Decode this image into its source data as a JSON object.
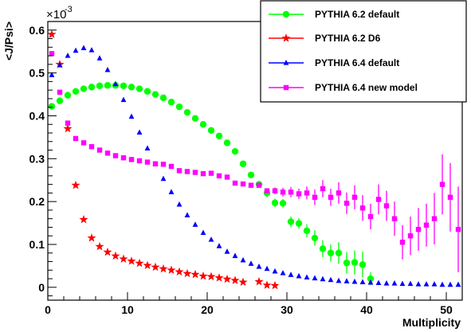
{
  "chart_data": {
    "type": "scatter",
    "title": "",
    "xlabel": "Multiplicity",
    "ylabel": "<J/Psi>",
    "y_multiplier_label": "×10",
    "y_multiplier_exp": "-3",
    "xlim": [
      0,
      52
    ],
    "ylim": [
      -0.03,
      0.62
    ],
    "x_ticks": [
      0,
      10,
      20,
      30,
      40,
      50
    ],
    "y_ticks": [
      0,
      0.1,
      0.2,
      0.3,
      0.4,
      0.5,
      0.6
    ],
    "x_tick_labels": [
      "0",
      "10",
      "20",
      "30",
      "40",
      "50"
    ],
    "y_tick_labels": [
      "0",
      "0.1",
      "0.2",
      "0.3",
      "0.4",
      "0.5",
      "0.6"
    ],
    "grid": false,
    "legend_position": "top-right",
    "series": [
      {
        "name": "PYTHIA 6.2 default",
        "color": "#00ff00",
        "marker": "circle",
        "x": [
          0.5,
          1.5,
          2.5,
          3.5,
          4.5,
          5.5,
          6.5,
          7.5,
          8.5,
          9.5,
          10.5,
          11.5,
          12.5,
          13.5,
          14.5,
          15.5,
          16.5,
          17.5,
          18.5,
          19.5,
          20.5,
          21.5,
          22.5,
          23.5,
          24.5,
          25.5,
          26.5,
          27.5,
          28.5,
          29.5,
          30.5,
          31.5,
          32.5,
          33.5,
          34.5,
          35.5,
          36.5,
          37.5,
          38.5,
          39.5,
          40.5
        ],
        "y": [
          0.422,
          0.435,
          0.448,
          0.457,
          0.463,
          0.467,
          0.47,
          0.471,
          0.471,
          0.47,
          0.467,
          0.463,
          0.457,
          0.45,
          0.442,
          0.432,
          0.421,
          0.408,
          0.394,
          0.38,
          0.366,
          0.353,
          0.337,
          0.317,
          0.288,
          0.262,
          0.24,
          0.22,
          0.197,
          0.196,
          0.153,
          0.149,
          0.132,
          0.115,
          0.09,
          0.08,
          0.08,
          0.057,
          0.058,
          0.053,
          0.02
        ],
        "err": [
          0,
          0,
          0,
          0,
          0,
          0,
          0,
          0,
          0,
          0,
          0,
          0,
          0,
          0,
          0,
          0,
          0,
          0,
          0,
          0,
          0,
          0,
          0,
          0,
          0,
          0,
          0,
          0.01,
          0.01,
          0.01,
          0.012,
          0.012,
          0.015,
          0.018,
          0.02,
          0.02,
          0.025,
          0.025,
          0.028,
          0.03,
          0.015
        ]
      },
      {
        "name": "PYTHIA 6.2 D6",
        "color": "#ff0000",
        "marker": "star",
        "x": [
          0.5,
          1.5,
          2.5,
          3.5,
          4.5,
          5.5,
          6.5,
          7.5,
          8.5,
          9.5,
          10.5,
          11.5,
          12.5,
          13.5,
          14.5,
          15.5,
          16.5,
          17.5,
          18.5,
          19.5,
          20.5,
          21.5,
          22.5,
          23.5,
          24.5,
          26.5,
          27.5,
          28.5
        ],
        "y": [
          0.59,
          0.52,
          0.37,
          0.238,
          0.158,
          0.115,
          0.095,
          0.082,
          0.073,
          0.066,
          0.061,
          0.056,
          0.051,
          0.047,
          0.043,
          0.04,
          0.036,
          0.032,
          0.03,
          0.026,
          0.025,
          0.022,
          0.019,
          0.016,
          0.012,
          0.013,
          0.005,
          0.004
        ]
      },
      {
        "name": "PYTHIA 6.4 default",
        "color": "#0000ff",
        "marker": "triangle",
        "x": [
          0.5,
          1.5,
          2.5,
          3.5,
          4.5,
          5.5,
          6.5,
          7.5,
          8.5,
          9.5,
          10.5,
          11.5,
          12.5,
          13.5,
          14.5,
          15.5,
          16.5,
          17.5,
          18.5,
          19.5,
          20.5,
          21.5,
          22.5,
          23.5,
          24.5,
          25.5,
          26.5,
          27.5,
          28.5,
          29.5,
          30.5,
          31.5,
          32.5,
          33.5,
          34.5,
          35.5,
          36.5,
          37.5,
          38.5,
          39.5,
          40.5,
          41.5,
          42.5,
          43.5,
          44.5,
          45.5,
          46.5,
          47.5,
          48.5,
          49.5,
          50.5,
          51.5
        ],
        "y": [
          0.495,
          0.518,
          0.54,
          0.552,
          0.558,
          0.553,
          0.534,
          0.507,
          0.474,
          0.437,
          0.398,
          0.361,
          0.324,
          0.287,
          0.253,
          0.222,
          0.193,
          0.168,
          0.146,
          0.127,
          0.111,
          0.096,
          0.083,
          0.073,
          0.063,
          0.055,
          0.048,
          0.043,
          0.037,
          0.033,
          0.029,
          0.026,
          0.023,
          0.021,
          0.019,
          0.017,
          0.015,
          0.014,
          0.013,
          0.012,
          0.011,
          0.01,
          0.009,
          0.009,
          0.008,
          0.008,
          0.007,
          0.007,
          0.007,
          0.006,
          0.006,
          0.006
        ]
      },
      {
        "name": "PYTHIA 6.4 new model",
        "color": "#ff00ff",
        "marker": "square",
        "x": [
          0.5,
          1.5,
          2.5,
          3.5,
          4.5,
          5.5,
          6.5,
          7.5,
          8.5,
          9.5,
          10.5,
          11.5,
          12.5,
          13.5,
          14.5,
          15.5,
          16.5,
          17.5,
          18.5,
          19.5,
          20.5,
          21.5,
          22.5,
          23.5,
          24.5,
          25.5,
          26.5,
          27.5,
          28.5,
          29.5,
          30.5,
          31.5,
          32.5,
          33.5,
          34.5,
          35.5,
          36.5,
          37.5,
          38.5,
          39.5,
          40.5,
          41.5,
          42.5,
          43.5,
          44.5,
          45.5,
          46.5,
          47.5,
          48.5,
          49.5,
          50.5,
          51.5
        ],
        "y": [
          0.545,
          0.455,
          0.383,
          0.347,
          0.337,
          0.328,
          0.32,
          0.313,
          0.307,
          0.302,
          0.298,
          0.295,
          0.292,
          0.288,
          0.287,
          0.282,
          0.272,
          0.27,
          0.268,
          0.265,
          0.266,
          0.26,
          0.257,
          0.243,
          0.241,
          0.238,
          0.238,
          0.225,
          0.225,
          0.222,
          0.222,
          0.218,
          0.22,
          0.21,
          0.23,
          0.21,
          0.22,
          0.196,
          0.21,
          0.185,
          0.165,
          0.205,
          0.19,
          0.16,
          0.105,
          0.12,
          0.135,
          0.145,
          0.16,
          0.24,
          0.21,
          0.135
        ],
        "err": [
          0,
          0,
          0,
          0,
          0,
          0,
          0,
          0,
          0,
          0,
          0,
          0,
          0,
          0,
          0,
          0,
          0,
          0,
          0,
          0,
          0,
          0,
          0,
          0,
          0,
          0,
          0,
          0,
          0.008,
          0.01,
          0.012,
          0.012,
          0.015,
          0.018,
          0.02,
          0.02,
          0.025,
          0.025,
          0.028,
          0.03,
          0.03,
          0.035,
          0.035,
          0.04,
          0.04,
          0.045,
          0.05,
          0.05,
          0.06,
          0.07,
          0.08,
          0.1
        ]
      }
    ]
  }
}
